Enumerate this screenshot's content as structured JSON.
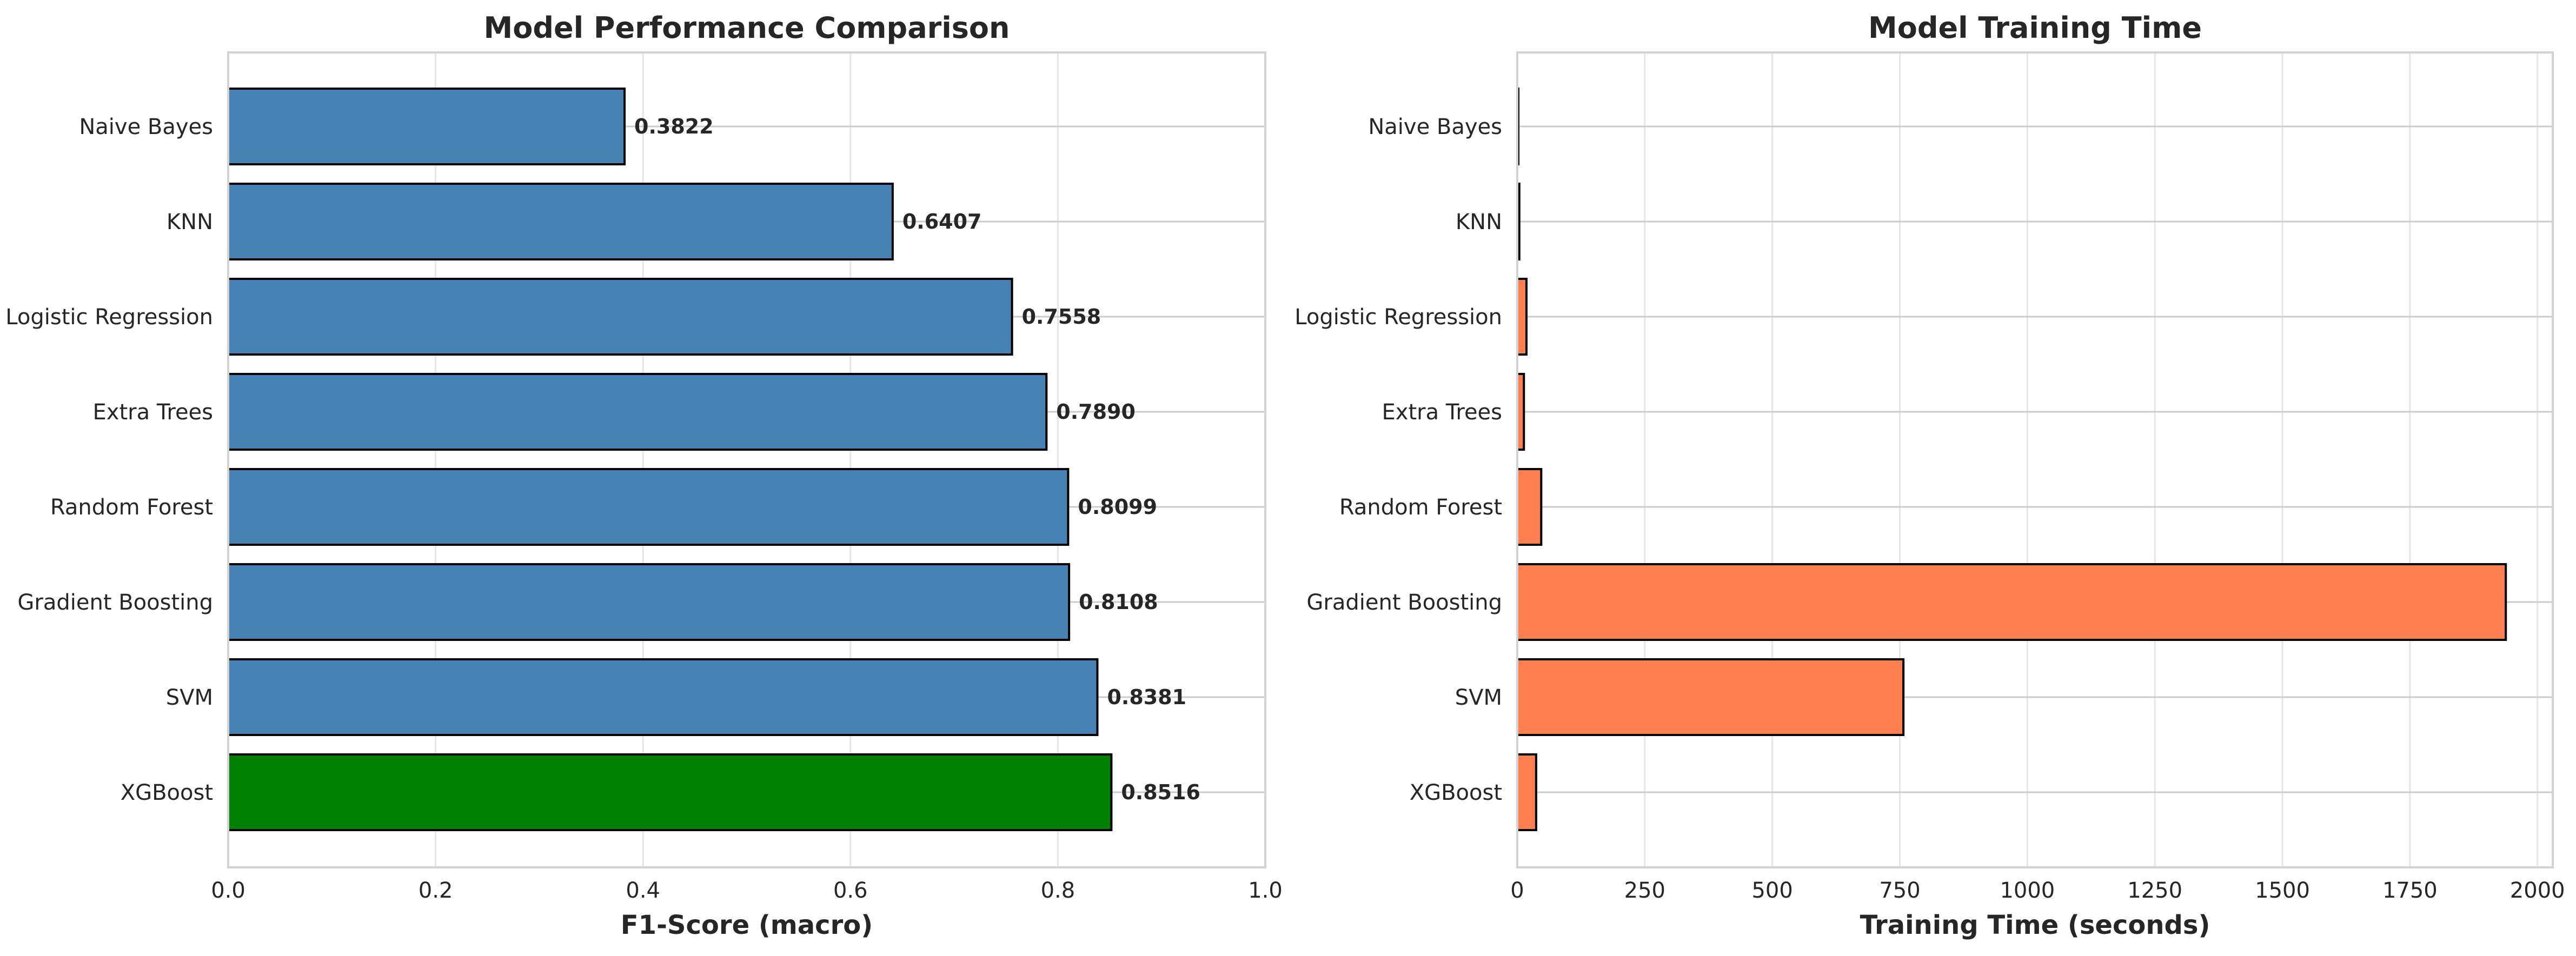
{
  "chart_data": [
    {
      "type": "bar",
      "orientation": "horizontal",
      "title": "Model Performance Comparison",
      "xlabel": "F1-Score (macro)",
      "ylabel": "",
      "xlim": [
        0,
        1.0
      ],
      "xticks": [
        "0.0",
        "0.2",
        "0.4",
        "0.6",
        "0.8",
        "1.0"
      ],
      "grid": true,
      "categories": [
        "Naive Bayes",
        "KNN",
        "Logistic Regression",
        "Extra Trees",
        "Random Forest",
        "Gradient Boosting",
        "SVM",
        "XGBoost"
      ],
      "values": [
        0.3822,
        0.6407,
        0.7558,
        0.789,
        0.8099,
        0.8108,
        0.8381,
        0.8516
      ],
      "value_labels": [
        "0.3822",
        "0.6407",
        "0.7558",
        "0.7890",
        "0.8099",
        "0.8108",
        "0.8381",
        "0.8516"
      ],
      "colors": [
        "#4682b4",
        "#4682b4",
        "#4682b4",
        "#4682b4",
        "#4682b4",
        "#4682b4",
        "#4682b4",
        "#008000"
      ]
    },
    {
      "type": "bar",
      "orientation": "horizontal",
      "title": "Model Training Time",
      "xlabel": "Training Time (seconds)",
      "ylabel": "",
      "xlim": [
        0,
        2030
      ],
      "xticks": [
        "0",
        "250",
        "500",
        "750",
        "1000",
        "1250",
        "1500",
        "1750",
        "2000"
      ],
      "grid": true,
      "categories": [
        "Naive Bayes",
        "KNN",
        "Logistic Regression",
        "Extra Trees",
        "Random Forest",
        "Gradient Boosting",
        "SVM",
        "XGBoost"
      ],
      "values": [
        1,
        4,
        18,
        13,
        47,
        1938,
        757,
        37
      ],
      "colors": [
        "#ff7f50",
        "#ff7f50",
        "#ff7f50",
        "#ff7f50",
        "#ff7f50",
        "#ff7f50",
        "#ff7f50",
        "#ff7f50"
      ]
    }
  ]
}
